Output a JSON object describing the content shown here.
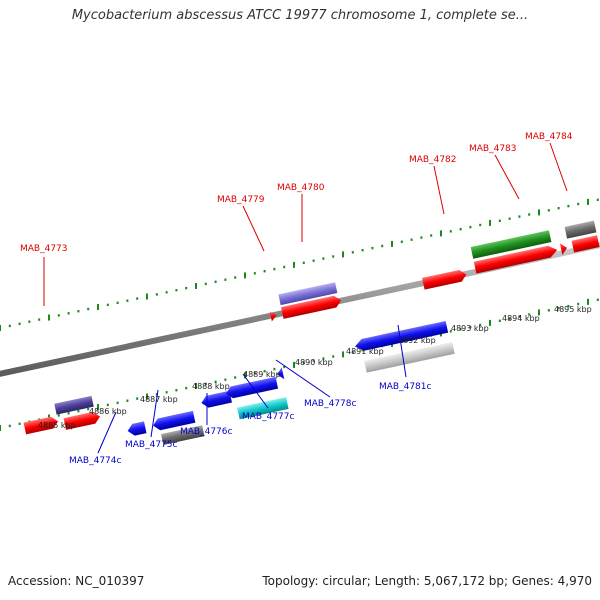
{
  "title": "Mycobacterium abscessus ATCC 19977 chromosome 1, complete se...",
  "footer": {
    "accession": "Accession: NC_010397",
    "summary": "Topology: circular; Length: 5,067,172 bp; Genes: 4,970"
  },
  "colors": {
    "forward_label": "#dd0000",
    "reverse_label": "#0000cc",
    "tick": "#1a8a1a",
    "backbone": "#888888"
  },
  "kbp_labels": [
    "4885 kbp",
    "4886 kbp",
    "4887 kbp",
    "4888 kbp",
    "4889 kbp",
    "4890 kbp",
    "4891 kbp",
    "4892 kbp",
    "4893 kbp",
    "4894 kbp",
    "4895 kbp"
  ],
  "forward_genes": [
    "MAB_4773",
    "MAB_4779",
    "MAB_4780",
    "MAB_4782",
    "MAB_4783",
    "MAB_4784"
  ],
  "reverse_genes": [
    "MAB_4774c",
    "MAB_4775c",
    "MAB_4776c",
    "MAB_4777c",
    "MAB_4778c",
    "MAB_4781c"
  ]
}
